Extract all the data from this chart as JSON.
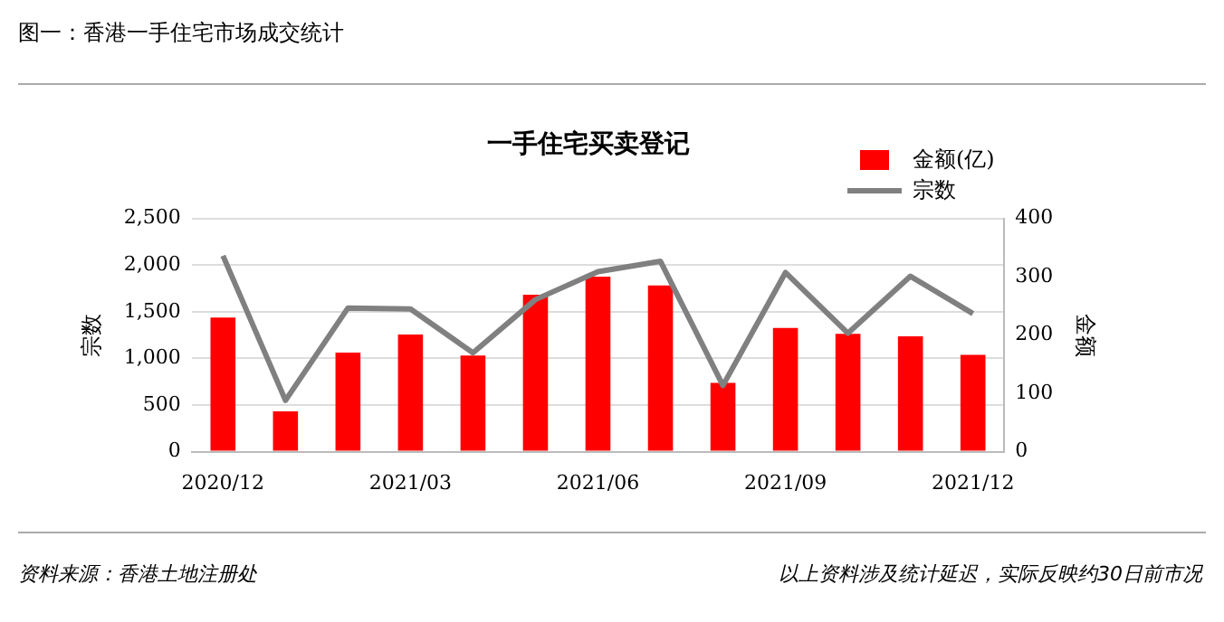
{
  "chart_data": {
    "type": "bar",
    "title": "一手住宅买卖登记",
    "subtitle": "图一：香港一手住宅市场成交统计",
    "ylabel": "宗数",
    "y2label": "金额",
    "categories": [
      "2020/12",
      null,
      null,
      "2021/03",
      null,
      null,
      "2021/06",
      null,
      null,
      "2021/09",
      null,
      null,
      "2021/12"
    ],
    "series": [
      {
        "name": "金额(亿)",
        "axis": "y2",
        "color": "#ff0000",
        "values": [
          230,
          69,
          170,
          201,
          165,
          269,
          300,
          285,
          118,
          212,
          202,
          198,
          166
        ]
      },
      {
        "name": "宗数",
        "type": "line",
        "axis": "y",
        "color": "#808080",
        "values": [
          2100,
          550,
          1540,
          1530,
          1060,
          1630,
          1930,
          2040,
          710,
          1920,
          1270,
          1880,
          1480
        ]
      }
    ],
    "ylim": [
      0,
      2500
    ],
    "yticks": [
      0,
      500,
      {
        "value": 1000,
        "label": "1,000"
      },
      {
        "value": 1500,
        "label": "1,500"
      },
      {
        "value": 2000,
        "label": "2,000"
      },
      {
        "value": 2500,
        "label": "2,500"
      }
    ],
    "y2lim": [
      0,
      400
    ],
    "y2ticks": [
      0,
      100,
      200,
      300,
      400
    ],
    "grid": "y",
    "legend": "top right",
    "marker": "none",
    "annotations": [
      "资料来源：香港土地注册处",
      "以上资料涉及统计延迟，实际反映约30日前市况"
    ]
  }
}
